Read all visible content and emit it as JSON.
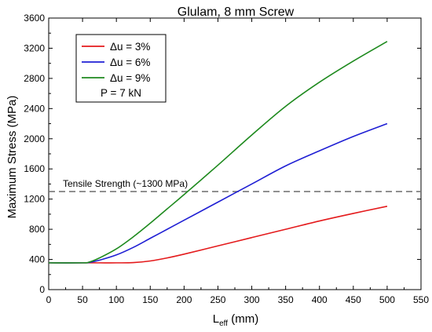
{
  "chart_data": {
    "type": "line",
    "title": "Glulam, 8 mm Screw",
    "xlabel_main": "L",
    "xlabel_sub": "eff",
    "xlabel_unit": " (mm)",
    "ylabel": "Maximum Stress (MPa)",
    "xlim": [
      0,
      550
    ],
    "ylim": [
      0,
      3600
    ],
    "xticks": [
      0,
      50,
      100,
      150,
      200,
      250,
      300,
      350,
      400,
      450,
      500,
      550
    ],
    "yticks": [
      0,
      400,
      800,
      1200,
      1600,
      2000,
      2400,
      2800,
      3200,
      3600
    ],
    "grid": false,
    "legend_position": "top-left",
    "legend_note": "P = 7 kN",
    "series": [
      {
        "name": "Δu = 3%",
        "color": "#e41a1c",
        "x": [
          0,
          50,
          75,
          100,
          125,
          150,
          175,
          200,
          250,
          300,
          350,
          400,
          450,
          500
        ],
        "y": [
          355,
          355,
          355,
          355,
          358,
          380,
          420,
          470,
          580,
          690,
          800,
          910,
          1010,
          1105
        ]
      },
      {
        "name": "Δu = 6%",
        "color": "#1f1fd4",
        "x": [
          0,
          50,
          60,
          75,
          100,
          125,
          150,
          175,
          200,
          250,
          300,
          350,
          400,
          450,
          500
        ],
        "y": [
          355,
          355,
          360,
          390,
          460,
          560,
          680,
          800,
          920,
          1160,
          1400,
          1640,
          1840,
          2030,
          2200
        ]
      },
      {
        "name": "Δu = 9%",
        "color": "#1e8a1e",
        "x": [
          0,
          50,
          60,
          75,
          100,
          125,
          150,
          175,
          200,
          250,
          300,
          350,
          400,
          450,
          500
        ],
        "y": [
          355,
          355,
          365,
          420,
          540,
          700,
          880,
          1070,
          1260,
          1650,
          2050,
          2430,
          2750,
          3030,
          3290
        ]
      }
    ],
    "reference_line": {
      "y": 1300,
      "label": "Tensile Strength (~1300 MPa)",
      "color": "#777777"
    }
  }
}
